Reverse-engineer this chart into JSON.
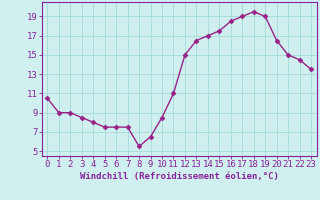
{
  "x": [
    0,
    1,
    2,
    3,
    4,
    5,
    6,
    7,
    8,
    9,
    10,
    11,
    12,
    13,
    14,
    15,
    16,
    17,
    18,
    19,
    20,
    21,
    22,
    23
  ],
  "y": [
    10.5,
    9.0,
    9.0,
    8.5,
    8.0,
    7.5,
    7.5,
    7.5,
    5.5,
    6.5,
    8.5,
    11.0,
    15.0,
    16.5,
    17.0,
    17.5,
    18.5,
    19.0,
    19.5,
    19.0,
    16.5,
    15.0,
    14.5,
    13.5
  ],
  "line_color": "#992288",
  "marker": "D",
  "marker_size": 2.5,
  "bg_color": "#d0f0f0",
  "grid_color": "#aadddd",
  "xlabel": "Windchill (Refroidissement éolien,°C)",
  "xlim": [
    -0.5,
    23.5
  ],
  "ylim": [
    4.5,
    20.5
  ],
  "yticks": [
    5,
    7,
    9,
    11,
    13,
    15,
    17,
    19
  ],
  "xticks": [
    0,
    1,
    2,
    3,
    4,
    5,
    6,
    7,
    8,
    9,
    10,
    11,
    12,
    13,
    14,
    15,
    16,
    17,
    18,
    19,
    20,
    21,
    22,
    23
  ],
  "xlabel_fontsize": 6.5,
  "tick_fontsize": 6.5,
  "axis_color": "#882299",
  "linewidth": 1.0
}
